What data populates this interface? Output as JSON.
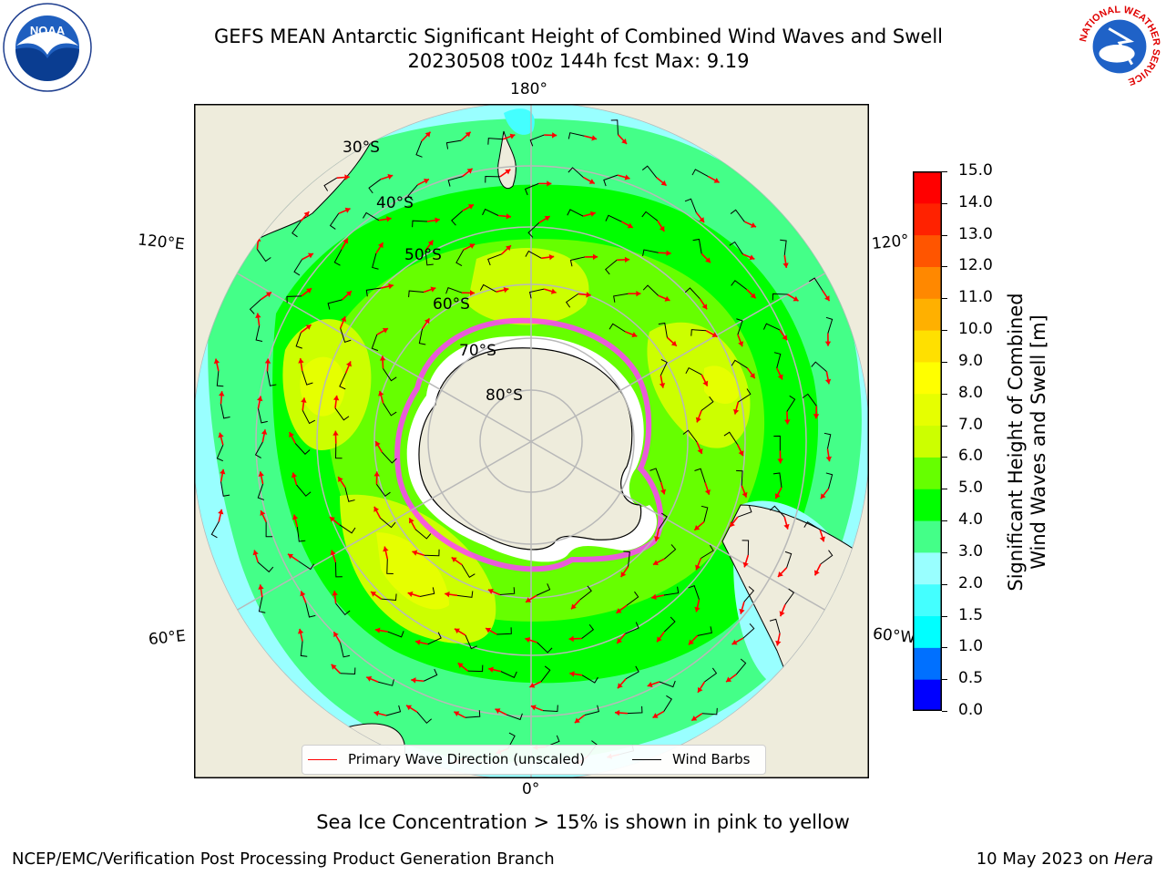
{
  "title": {
    "line1": "GEFS MEAN Antarctic Significant Height of Combined Wind Waves and Swell",
    "line2": "20230508 t00z 144h fcst   Max: 9.19"
  },
  "logos": {
    "left": {
      "icon": "noaa-logo",
      "text": "NOAA"
    },
    "right": {
      "icon": "nws-logo",
      "text": "NATIONAL WEATHER SERVICE"
    }
  },
  "map": {
    "projection": "south-polar-stereographic",
    "lon_labels": {
      "top": "180°",
      "bottom": "0°",
      "upper_left": "120°E",
      "upper_right": "120°",
      "lower_left": "60°E",
      "lower_right": "60°W"
    },
    "lat_labels": [
      "30°S",
      "40°S",
      "50°S",
      "60°S",
      "70°S",
      "80°S"
    ],
    "colors": {
      "land": "#eeecdc",
      "ice_free_antarctica": "#ffffff",
      "grid": "#b8b8b8",
      "wave_arrow": "#ff0000",
      "wind_barb": "#000000",
      "sea_ice": "#ff40ff"
    }
  },
  "legend": {
    "wave": "Primary Wave Direction (unscaled)",
    "wind": "Wind Barbs"
  },
  "colorbar": {
    "title_line1": "Significant Height of Combined",
    "title_line2": "Wind Waves and Swell [m]",
    "ticks": [
      "15.0",
      "14.0",
      "13.0",
      "12.0",
      "11.0",
      "10.0",
      "9.0",
      "8.0",
      "7.0",
      "6.0",
      "5.0",
      "4.0",
      "3.0",
      "2.0",
      "1.5",
      "1.0",
      "0.5",
      "0.0"
    ],
    "colors_bottom_to_top": [
      "#0000ff",
      "#0070ff",
      "#00ffff",
      "#44ffff",
      "#99ffff",
      "#44ff88",
      "#00ff00",
      "#66ff00",
      "#ccff00",
      "#e6ff00",
      "#ffff00",
      "#ffe000",
      "#ffb000",
      "#ff8800",
      "#ff5500",
      "#ff2200",
      "#ff0000"
    ]
  },
  "caption": "Sea Ice Concentration > 15% is shown in pink to yellow",
  "footer": {
    "left": "NCEP/EMC/Verification Post Processing Product Generation Branch",
    "right_prefix": "10 May 2023 on ",
    "right_host": "Hera"
  }
}
